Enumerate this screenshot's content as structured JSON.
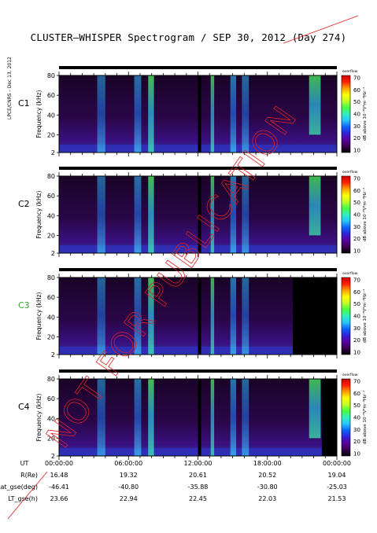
{
  "title": "CLUSTER–WHISPER Spectrogram / SEP 30, 2012 (Day 274)",
  "side_label": "LPCE/CNRS - Dec 13, 2012",
  "watermark": "NOT FOR PUBLICATION",
  "watermark_color": "#dd1f1f",
  "colorbar": {
    "top_label": "overflow",
    "ticks": [
      "70",
      "60",
      "50",
      "40",
      "30",
      "20",
      "10"
    ],
    "unit": "dB above 10⁻⁸V²m⁻²Hz⁻¹",
    "colors": [
      "#000000",
      "#3a0050",
      "#5a00a0",
      "#3020e0",
      "#1060ff",
      "#20c8ff",
      "#30f0c0",
      "#40ff40",
      "#c0ff20",
      "#ffff00",
      "#ffa000",
      "#ff2000",
      "#d00000"
    ]
  },
  "panels": [
    {
      "name": "C1",
      "name_color": "#000000",
      "ylabel": "Frequency (kHz)",
      "yticks": [
        "80",
        "60",
        "40",
        "20",
        "2"
      ]
    },
    {
      "name": "C2",
      "name_color": "#000000",
      "ylabel": "Frequency (kHz)",
      "yticks": [
        "80",
        "60",
        "40",
        "20",
        "2"
      ]
    },
    {
      "name": "C3",
      "name_color": "#2ea82e",
      "ylabel": "Frequency (kHz)",
      "yticks": [
        "80",
        "60",
        "40",
        "20",
        "2"
      ]
    },
    {
      "name": "C4",
      "name_color": "#000000",
      "ylabel": "Frequency (kHz)",
      "yticks": [
        "80",
        "60",
        "40",
        "20",
        "2"
      ]
    }
  ],
  "chart_data": {
    "type": "heatmap",
    "x_axis": {
      "label": "UT",
      "range": [
        "00:00:00",
        "24:00:00"
      ],
      "ticks": [
        "00:00:00",
        "06:00:00",
        "12:00:00",
        "18:00:00",
        "00:00:00"
      ]
    },
    "y_axis": {
      "label": "Frequency (kHz)",
      "range": [
        2,
        80
      ],
      "ticks": [
        2,
        20,
        40,
        60,
        80
      ]
    },
    "color_scale": {
      "min": 10,
      "max": 70,
      "unit": "dB above 10^-8 V^2 m^-2 Hz^-1"
    },
    "ephemeris": [
      {
        "label": "R(Re)",
        "values": [
          "16.48",
          "19.32",
          "20.61",
          "20.52",
          "19.04"
        ]
      },
      {
        "label": "Lat_gse(deg)",
        "values": [
          "-46.41",
          "-40.80",
          "-35.88",
          "-30.80",
          "-25.03"
        ]
      },
      {
        "label": "LT_gse(h)",
        "values": [
          "23.66",
          "22.94",
          "22.45",
          "22.03",
          "21.53"
        ]
      }
    ],
    "bursts": [
      {
        "t": [
          3.3,
          4.0
        ],
        "f": [
          2,
          80
        ],
        "level": 28
      },
      {
        "t": [
          6.5,
          7.1
        ],
        "f": [
          2,
          80
        ],
        "level": 36
      },
      {
        "t": [
          7.7,
          8.2
        ],
        "f": [
          2,
          80
        ],
        "level": 48
      },
      {
        "t": [
          13.1,
          13.4
        ],
        "f": [
          2,
          80
        ],
        "level": 44
      },
      {
        "t": [
          14.8,
          15.3
        ],
        "f": [
          2,
          80
        ],
        "level": 40
      },
      {
        "t": [
          15.8,
          16.4
        ],
        "f": [
          2,
          80
        ],
        "level": 30
      },
      {
        "t": [
          21.6,
          22.6
        ],
        "f": [
          20,
          80
        ],
        "level": 46
      }
    ]
  }
}
